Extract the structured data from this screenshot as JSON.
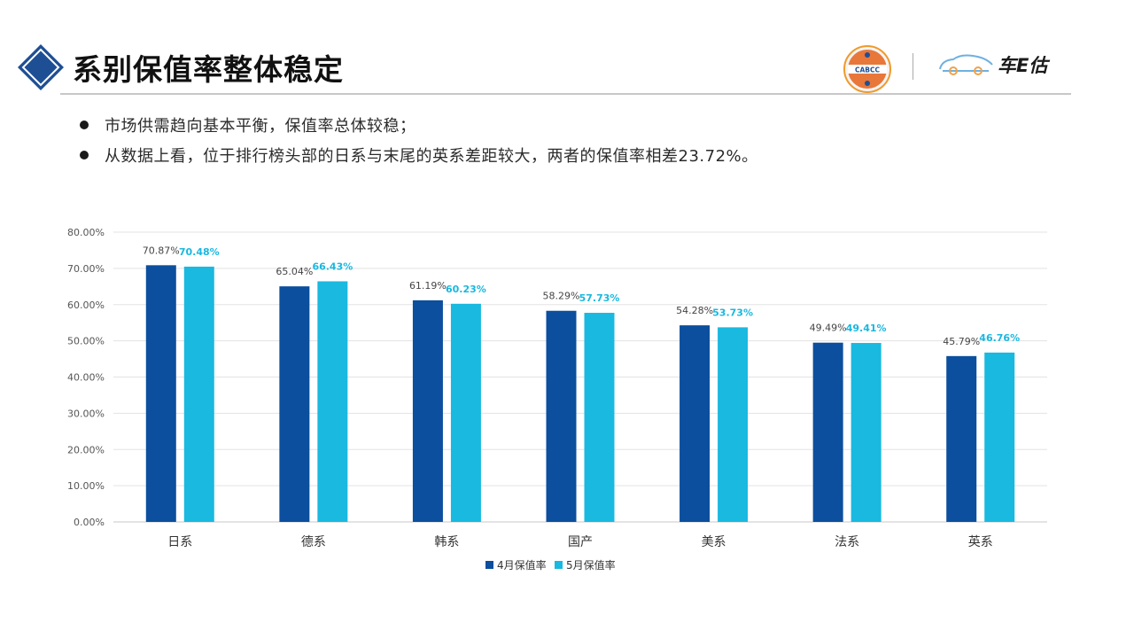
{
  "header": {
    "title": "系别保值率整体稳定",
    "logo_left_text": "CABCC",
    "logo_right_text": "车E估"
  },
  "bullets": [
    "市场供需趋向基本平衡，保值率总体较稳；",
    "从数据上看，位于排行榜头部的日系与末尾的英系差距较大，两者的保值率相差23.72%。"
  ],
  "colors": {
    "series1": "#0b4f9e",
    "series2": "#19b9e0",
    "grid": "#e3e3e3",
    "title_diamond": "#1e4f95"
  },
  "chart_data": {
    "type": "bar",
    "title": "",
    "xlabel": "",
    "ylabel": "",
    "ylim": [
      0,
      80
    ],
    "grid": true,
    "legend_position": "bottom",
    "y_ticks": [
      "0.00%",
      "10.00%",
      "20.00%",
      "30.00%",
      "40.00%",
      "50.00%",
      "60.00%",
      "70.00%",
      "80.00%"
    ],
    "categories": [
      "日系",
      "德系",
      "韩系",
      "国产",
      "美系",
      "法系",
      "英系"
    ],
    "series": [
      {
        "name": "4月保值率",
        "values": [
          70.87,
          65.04,
          61.19,
          58.29,
          54.28,
          49.49,
          45.79
        ],
        "labels": [
          "70.87%",
          "65.04%",
          "61.19%",
          "58.29%",
          "54.28%",
          "49.49%",
          "45.79%"
        ]
      },
      {
        "name": "5月保值率",
        "values": [
          70.48,
          66.43,
          60.23,
          57.73,
          53.73,
          49.41,
          46.76
        ],
        "labels": [
          "70.48%",
          "66.43%",
          "60.23%",
          "57.73%",
          "53.73%",
          "49.41%",
          "46.76%"
        ]
      }
    ]
  }
}
